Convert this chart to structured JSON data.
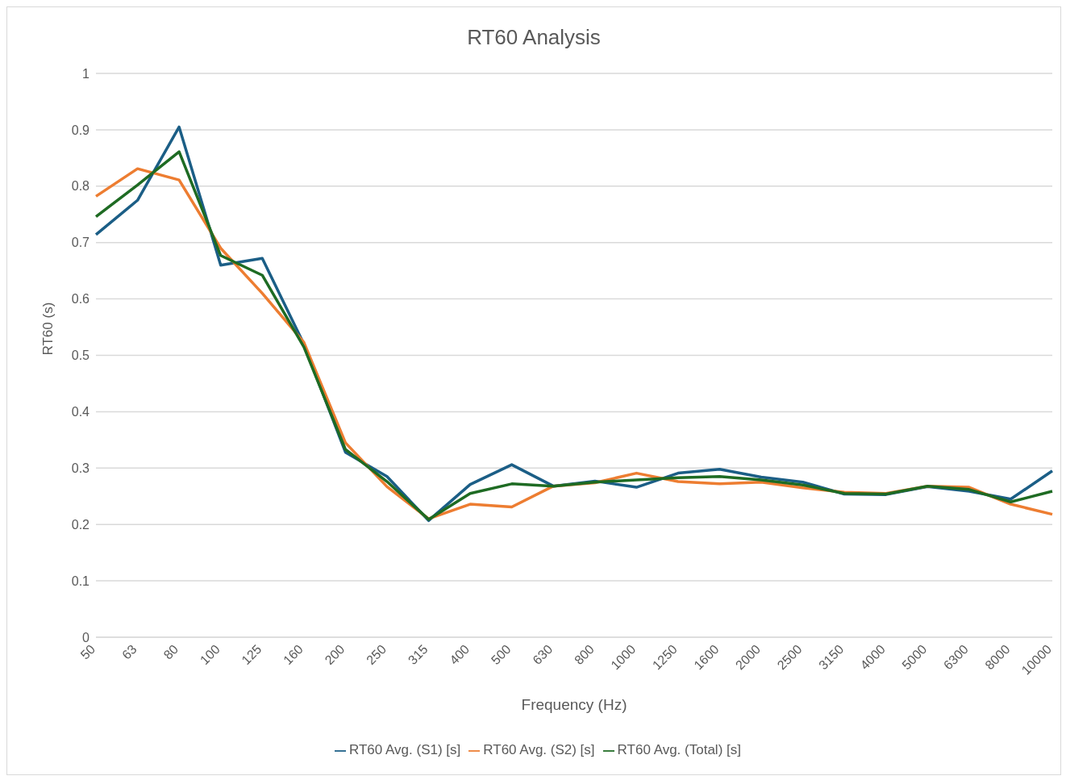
{
  "chart_data": {
    "type": "line",
    "title": "RT60 Analysis",
    "xlabel": "Frequency (Hz)",
    "ylabel": "RT60 (s)",
    "categories": [
      "50",
      "63",
      "80",
      "100",
      "125",
      "160",
      "200",
      "250",
      "315",
      "400",
      "500",
      "630",
      "800",
      "1000",
      "1250",
      "1600",
      "2000",
      "2500",
      "3150",
      "4000",
      "5000",
      "6300",
      "8000",
      "10000"
    ],
    "series": [
      {
        "name": "RT60 Avg. (S1) [s]",
        "color": "#1b5e86",
        "values": [
          0.714,
          0.775,
          0.905,
          0.66,
          0.672,
          0.52,
          0.328,
          0.285,
          0.207,
          0.271,
          0.306,
          0.268,
          0.277,
          0.266,
          0.291,
          0.298,
          0.284,
          0.275,
          0.254,
          0.253,
          0.267,
          0.259,
          0.245,
          0.295
        ]
      },
      {
        "name": "RT60 Avg. (S2) [s]",
        "color": "#ed7d31",
        "values": [
          0.782,
          0.831,
          0.811,
          0.69,
          0.61,
          0.523,
          0.345,
          0.267,
          0.21,
          0.236,
          0.231,
          0.268,
          0.274,
          0.291,
          0.276,
          0.272,
          0.275,
          0.265,
          0.257,
          0.255,
          0.268,
          0.266,
          0.236,
          0.218
        ]
      },
      {
        "name": "RT60 Avg. (Total) [s]",
        "color": "#1e6b23",
        "values": [
          0.746,
          0.802,
          0.861,
          0.677,
          0.642,
          0.515,
          0.333,
          0.276,
          0.209,
          0.255,
          0.272,
          0.268,
          0.275,
          0.279,
          0.283,
          0.285,
          0.279,
          0.27,
          0.255,
          0.254,
          0.268,
          0.262,
          0.24,
          0.259
        ]
      }
    ],
    "ylim": [
      0,
      1
    ],
    "yticks": [
      0,
      0.1,
      0.2,
      0.3,
      0.4,
      0.5,
      0.6,
      0.7,
      0.8,
      0.9,
      1
    ],
    "grid": "y",
    "legend": "bottom",
    "marker": "none",
    "line_style": "solid"
  }
}
